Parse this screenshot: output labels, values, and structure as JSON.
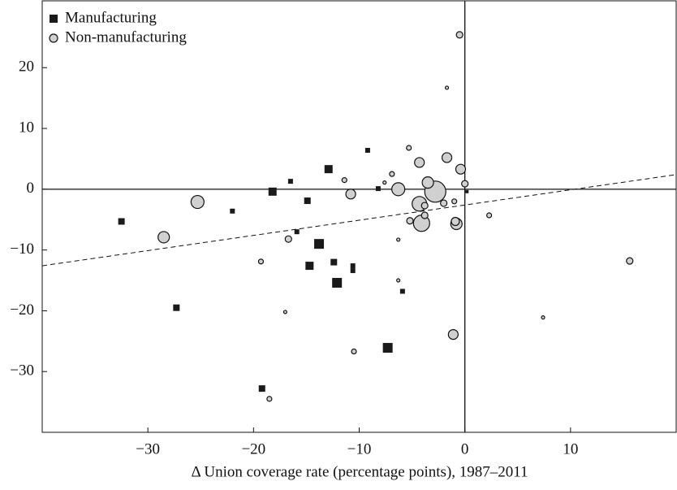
{
  "chart_data": {
    "type": "scatter",
    "x_label": "Δ Union coverage rate (percentage points), 1987–2011",
    "xlim": [
      -40,
      20
    ],
    "ylim": [
      -40,
      31
    ],
    "xticks": [
      {
        "value": -30,
        "label": "−30"
      },
      {
        "value": -20,
        "label": "−20"
      },
      {
        "value": -10,
        "label": "−10"
      },
      0,
      10
    ],
    "yticks": [
      {
        "value": -30,
        "label": "−30"
      },
      {
        "value": -20,
        "label": "−20"
      },
      {
        "value": -10,
        "label": "−10"
      },
      0,
      10,
      20
    ],
    "reference_lines": {
      "x": 0,
      "y": 0
    },
    "legend": "top-left",
    "series": [
      {
        "name": "Manufacturing",
        "marker": "square",
        "color": "#1a1a1a",
        "x": [
          -32.5,
          -27.3,
          -22,
          -19.2,
          -18.2,
          -16.5,
          -15.9,
          -14.9,
          -14.7,
          -13.8,
          -12.9,
          -12.4,
          -12.1,
          -10.6,
          -10.6,
          -9.2,
          -8.2,
          -7.3,
          -5.9,
          0.2
        ],
        "y": [
          -5.3,
          -19.5,
          -3.6,
          -32.8,
          -0.4,
          1.3,
          -7.0,
          -1.9,
          -12.6,
          -9.0,
          3.3,
          -12.0,
          -15.4,
          -12.6,
          -13.4,
          6.4,
          0.1,
          -26.1,
          -16.8,
          -0.4
        ],
        "sizes": [
          4,
          4,
          3,
          4,
          5,
          3,
          3,
          4,
          5,
          6,
          5,
          4,
          6,
          3,
          3,
          3,
          3,
          6,
          3,
          2
        ]
      },
      {
        "name": "Non-manufacturing",
        "marker": "circle",
        "color": "#d0d0d0",
        "x": [
          -28.5,
          -25.3,
          -19.3,
          -18.5,
          -17.0,
          -16.7,
          -11.4,
          -10.8,
          -10.5,
          -7.6,
          -6.9,
          -6.3,
          -6.3,
          -6.3,
          -5.3,
          -2.8,
          -4.3,
          -4.3,
          -4.1,
          -5.2,
          -3.8,
          -3.8,
          -3.5,
          -2.0,
          -1.7,
          -1.7,
          -1.1,
          -1.0,
          -0.8,
          -0.9,
          -0.5,
          -0.4,
          0,
          2.3,
          7.4,
          15.6
        ],
        "y": [
          -7.9,
          -2.1,
          -11.9,
          -34.5,
          -20.2,
          -8.2,
          1.5,
          -0.8,
          -26.7,
          1.1,
          2.5,
          -8.3,
          -15.0,
          0,
          6.8,
          -0.4,
          4.4,
          -2.4,
          -5.6,
          -5.2,
          -4.3,
          -2.7,
          1.1,
          -2.3,
          5.2,
          16.7,
          -23.9,
          -2.0,
          -5.7,
          -5.3,
          25.4,
          3.3,
          0.9,
          -4.3,
          -21.1,
          -11.8
        ],
        "sizes": [
          7,
          8,
          3,
          3,
          2,
          4,
          3,
          6,
          3,
          2,
          3,
          2,
          2,
          8,
          3,
          13,
          6,
          9,
          10,
          4,
          4,
          4,
          7,
          4,
          6,
          2,
          6,
          3,
          7,
          5,
          4,
          6,
          4,
          3,
          2,
          4
        ]
      }
    ],
    "trend_line": {
      "style": "dashed",
      "x": [
        -40,
        20
      ],
      "y": [
        -12.6,
        2.4
      ]
    }
  }
}
